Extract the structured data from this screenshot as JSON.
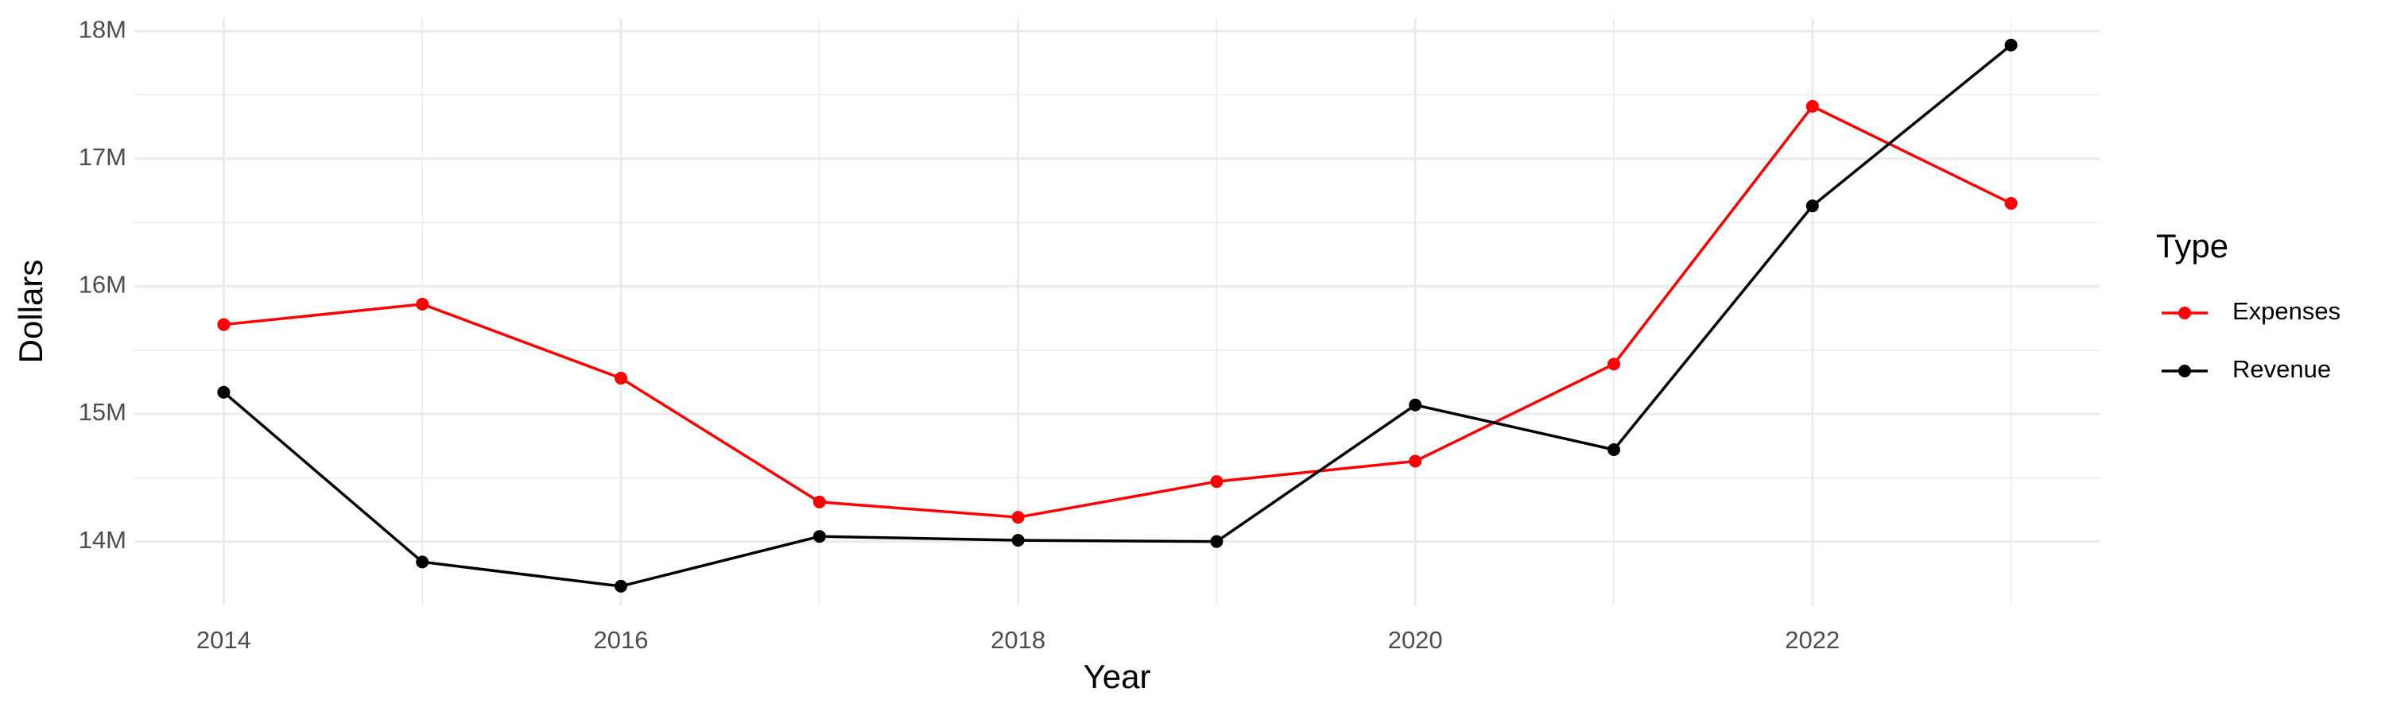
{
  "chart_data": {
    "type": "line",
    "x_label": "Year",
    "y_label": "Dollars",
    "x": [
      2014,
      2015,
      2016,
      2017,
      2018,
      2019,
      2020,
      2021,
      2022,
      2023
    ],
    "series": [
      {
        "name": "Expenses",
        "color": "#ff0000",
        "values": [
          15700000,
          15860000,
          15280000,
          14310000,
          14190000,
          14470000,
          14630000,
          15390000,
          17410000,
          16650000
        ]
      },
      {
        "name": "Revenue",
        "color": "#000000",
        "values": [
          15170000,
          13840000,
          13650000,
          14040000,
          14010000,
          14000000,
          15070000,
          14720000,
          16630000,
          17890000
        ]
      }
    ],
    "xlim": [
      2013.55,
      2023.45
    ],
    "xticks": [
      2014,
      2016,
      2018,
      2020,
      2022
    ],
    "ylim": [
      13500000,
      18100000
    ],
    "yticks": [
      {
        "value": 14000000,
        "label": "14M"
      },
      {
        "value": 15000000,
        "label": "15M"
      },
      {
        "value": 16000000,
        "label": "16M"
      },
      {
        "value": 17000000,
        "label": "17M"
      },
      {
        "value": 18000000,
        "label": "18M"
      }
    ],
    "legend_title": "Type",
    "legend_position": "right",
    "grid": true
  }
}
